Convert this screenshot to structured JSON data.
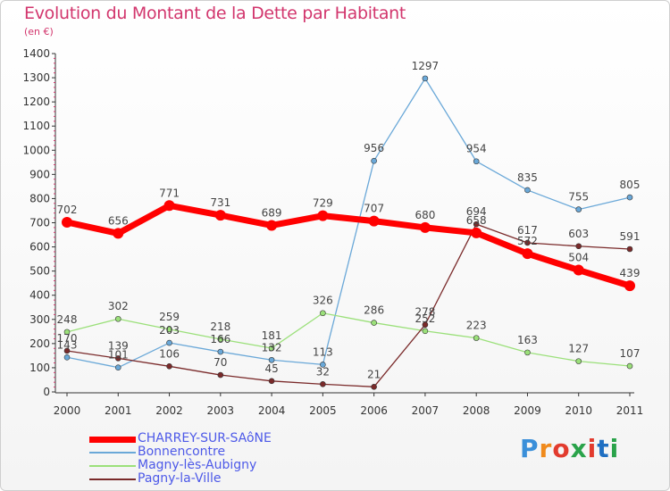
{
  "title": "Evolution du Montant de la Dette par Habitant",
  "subtitle": "(en €)",
  "logo_text": "Proxiti",
  "chart_data": {
    "type": "line",
    "title": "Evolution du Montant de la Dette par Habitant",
    "ylabel": "(en €)",
    "xlabel": "",
    "ylim": [
      0,
      1400
    ],
    "yticks": [
      0,
      100,
      200,
      300,
      400,
      500,
      600,
      700,
      800,
      900,
      1000,
      1100,
      1200,
      1300,
      1400
    ],
    "grid": false,
    "legend": "bottom-left",
    "x": [
      "2000",
      "2001",
      "2002",
      "2003",
      "2004",
      "2005",
      "2006",
      "2007",
      "2008",
      "2009",
      "2010",
      "2011"
    ],
    "series": [
      {
        "name": "CHARREY-SUR-SAôNE",
        "color": "#ff0000",
        "emphasis": true,
        "values": [
          702,
          656,
          771,
          731,
          689,
          729,
          707,
          680,
          658,
          572,
          504,
          439
        ]
      },
      {
        "name": "Bonnencontre",
        "color": "#6aa8d8",
        "emphasis": false,
        "values": [
          143,
          101,
          203,
          166,
          132,
          113,
          956,
          1297,
          954,
          835,
          755,
          805
        ]
      },
      {
        "name": "Magny-lès-Aubigny",
        "color": "#9be07a",
        "emphasis": false,
        "values": [
          248,
          302,
          259,
          218,
          181,
          326,
          286,
          252,
          223,
          163,
          127,
          107
        ]
      },
      {
        "name": "Pagny-la-Ville",
        "color": "#7a2a2a",
        "emphasis": false,
        "values": [
          170,
          139,
          106,
          70,
          45,
          32,
          21,
          278,
          694,
          617,
          603,
          591
        ]
      }
    ]
  }
}
